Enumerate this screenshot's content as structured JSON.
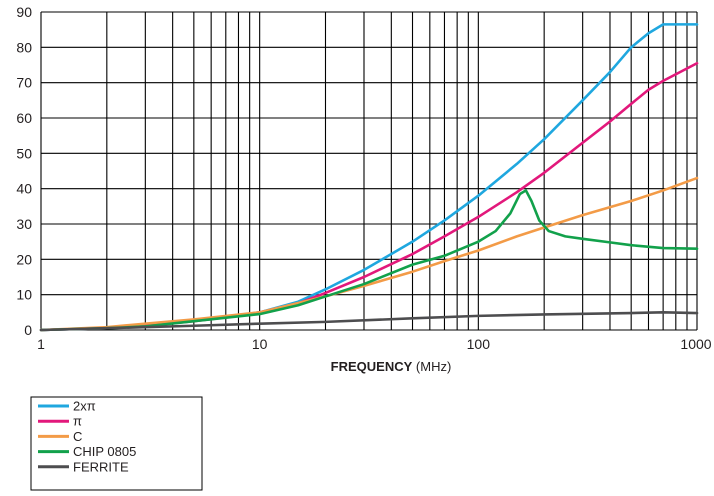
{
  "chart_data": {
    "type": "line",
    "xscale": "log",
    "xlim": [
      1,
      1000
    ],
    "ylim": [
      0,
      90
    ],
    "xlabel_bold": "FREQUENCY",
    "xlabel_unit": "(MHz)",
    "ylabel": "",
    "grid": true,
    "legend_position": "bottom-left",
    "x_ticks": [
      "1",
      "10",
      "100",
      "1000"
    ],
    "y_ticks": [
      "0",
      "10",
      "20",
      "30",
      "40",
      "50",
      "60",
      "70",
      "80",
      "90"
    ],
    "series": [
      {
        "name": "2xπ",
        "color": "#1fa7df",
        "points": [
          [
            1,
            0
          ],
          [
            2,
            0.5
          ],
          [
            3,
            1.3
          ],
          [
            5,
            2.6
          ],
          [
            8,
            4.2
          ],
          [
            10,
            5
          ],
          [
            15,
            8
          ],
          [
            20,
            11.5
          ],
          [
            30,
            17
          ],
          [
            50,
            25
          ],
          [
            70,
            31
          ],
          [
            100,
            38
          ],
          [
            150,
            47
          ],
          [
            200,
            54
          ],
          [
            300,
            65
          ],
          [
            400,
            73
          ],
          [
            500,
            80
          ],
          [
            600,
            84
          ],
          [
            700,
            86.5
          ],
          [
            800,
            86.5
          ],
          [
            1000,
            86.5
          ]
        ]
      },
      {
        "name": "π",
        "color": "#e2187b",
        "points": [
          [
            1,
            0
          ],
          [
            2,
            0.5
          ],
          [
            3,
            1.2
          ],
          [
            5,
            2.5
          ],
          [
            8,
            4
          ],
          [
            10,
            5
          ],
          [
            15,
            7.5
          ],
          [
            20,
            10.5
          ],
          [
            30,
            15
          ],
          [
            50,
            21.5
          ],
          [
            70,
            26.5
          ],
          [
            100,
            32
          ],
          [
            150,
            39
          ],
          [
            200,
            44.5
          ],
          [
            300,
            53
          ],
          [
            400,
            59
          ],
          [
            500,
            64
          ],
          [
            600,
            68
          ],
          [
            700,
            70.5
          ],
          [
            1000,
            75.5
          ]
        ]
      },
      {
        "name": "C",
        "color": "#f39b47",
        "points": [
          [
            1,
            0
          ],
          [
            2,
            0.8
          ],
          [
            3,
            1.8
          ],
          [
            5,
            3
          ],
          [
            10,
            5
          ],
          [
            20,
            9.5
          ],
          [
            30,
            12.5
          ],
          [
            50,
            16.5
          ],
          [
            70,
            19.5
          ],
          [
            100,
            22.5
          ],
          [
            150,
            26.5
          ],
          [
            200,
            29
          ],
          [
            300,
            32.5
          ],
          [
            500,
            36.5
          ],
          [
            700,
            39.5
          ],
          [
            1000,
            43
          ]
        ]
      },
      {
        "name": "CHIP 0805",
        "color": "#12a14b",
        "points": [
          [
            1,
            0
          ],
          [
            2,
            0.5
          ],
          [
            3,
            1
          ],
          [
            5,
            2.5
          ],
          [
            10,
            4.5
          ],
          [
            15,
            7
          ],
          [
            20,
            9.5
          ],
          [
            30,
            13
          ],
          [
            50,
            18.5
          ],
          [
            70,
            21
          ],
          [
            100,
            25
          ],
          [
            120,
            28
          ],
          [
            140,
            33
          ],
          [
            155,
            38.5
          ],
          [
            165,
            39.5
          ],
          [
            175,
            36.5
          ],
          [
            190,
            31
          ],
          [
            210,
            28
          ],
          [
            250,
            26.5
          ],
          [
            300,
            25.8
          ],
          [
            400,
            24.8
          ],
          [
            500,
            24
          ],
          [
            700,
            23.2
          ],
          [
            1000,
            23
          ]
        ]
      },
      {
        "name": "FERRITE",
        "color": "#4d4d4f",
        "points": [
          [
            1,
            0
          ],
          [
            2,
            0.5
          ],
          [
            5,
            1.2
          ],
          [
            10,
            1.8
          ],
          [
            20,
            2.3
          ],
          [
            50,
            3.3
          ],
          [
            100,
            4
          ],
          [
            200,
            4.4
          ],
          [
            500,
            4.8
          ],
          [
            700,
            5
          ],
          [
            1000,
            4.8
          ]
        ]
      }
    ]
  }
}
